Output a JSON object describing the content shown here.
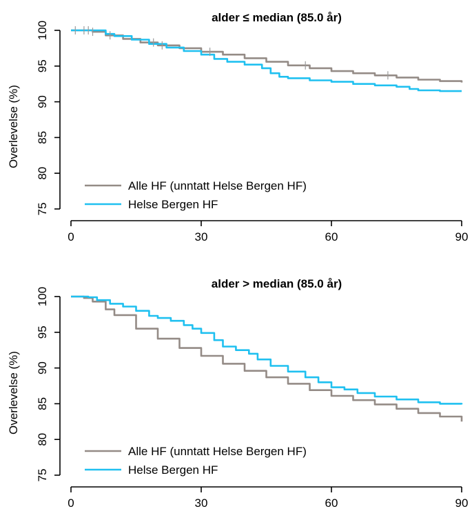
{
  "chart_data": [
    {
      "type": "line",
      "title": "alder ≤ median (85.0 år)",
      "xlabel": "",
      "ylabel": "Overlevelse (%)",
      "xlim": [
        0,
        90
      ],
      "ylim": [
        75,
        100
      ],
      "xticks": [
        0,
        30,
        60,
        90
      ],
      "yticks": [
        75,
        80,
        85,
        90,
        95,
        100
      ],
      "legend_position": "bottom-left",
      "series": [
        {
          "name": "Alle HF (unntatt Helse Bergen HF)",
          "color": "#948b86",
          "x": [
            0,
            5,
            8,
            12,
            16,
            20,
            25,
            30,
            35,
            40,
            45,
            50,
            55,
            60,
            65,
            70,
            75,
            80,
            85,
            90
          ],
          "y": [
            100,
            99.8,
            99.3,
            98.8,
            98.3,
            97.9,
            97.5,
            97.0,
            96.6,
            96.1,
            95.6,
            95.1,
            94.7,
            94.3,
            94.0,
            93.7,
            93.4,
            93.1,
            92.9,
            92.7
          ]
        },
        {
          "name": "Helse Bergen HF",
          "color": "#1fc0f0",
          "x": [
            0,
            5,
            8,
            10,
            14,
            18,
            22,
            26,
            30,
            33,
            36,
            40,
            44,
            46,
            48,
            50,
            55,
            60,
            65,
            70,
            75,
            78,
            80,
            85,
            90
          ],
          "y": [
            100,
            100,
            99.5,
            99.2,
            98.7,
            98.1,
            97.6,
            97.1,
            96.6,
            96.0,
            95.6,
            95.2,
            94.7,
            94.0,
            93.5,
            93.3,
            93.0,
            92.8,
            92.5,
            92.3,
            92.1,
            91.8,
            91.6,
            91.5,
            91.5
          ]
        }
      ],
      "censor_marks": {
        "series": "Alle HF (unntatt Helse Bergen HF)",
        "x": [
          1,
          3,
          4,
          5,
          9,
          19,
          21,
          32,
          54,
          73
        ]
      }
    },
    {
      "type": "line",
      "title": "alder > median (85.0 år)",
      "xlabel": "",
      "ylabel": "Overlevelse (%)",
      "xlim": [
        0,
        90
      ],
      "ylim": [
        75,
        100
      ],
      "xticks": [
        0,
        30,
        60,
        90
      ],
      "yticks": [
        75,
        80,
        85,
        90,
        95,
        100
      ],
      "legend_position": "bottom-left",
      "series": [
        {
          "name": "Alle HF (unntatt Helse Bergen HF)",
          "color": "#948b86",
          "x": [
            0,
            3,
            5,
            8,
            10,
            15,
            20,
            25,
            30,
            35,
            40,
            45,
            50,
            55,
            60,
            65,
            70,
            75,
            80,
            85,
            90
          ],
          "y": [
            100,
            99.8,
            99.3,
            98.2,
            97.4,
            95.5,
            94.1,
            92.8,
            91.7,
            90.6,
            89.6,
            88.7,
            87.8,
            86.9,
            86.1,
            85.5,
            84.9,
            84.3,
            83.7,
            83.2,
            82.5
          ]
        },
        {
          "name": "Helse Bergen HF",
          "color": "#1fc0f0",
          "x": [
            0,
            4,
            6,
            9,
            12,
            15,
            18,
            20,
            23,
            26,
            28,
            30,
            33,
            35,
            38,
            41,
            43,
            46,
            50,
            54,
            57,
            60,
            63,
            66,
            70,
            75,
            80,
            85,
            90
          ],
          "y": [
            100,
            99.9,
            99.5,
            99.0,
            98.6,
            98.0,
            97.3,
            97.0,
            96.6,
            96.0,
            95.5,
            94.9,
            93.9,
            93.0,
            92.5,
            92.0,
            91.2,
            90.3,
            89.5,
            88.7,
            88.0,
            87.3,
            87.0,
            86.5,
            86.0,
            85.6,
            85.2,
            85.0,
            84.9
          ]
        }
      ]
    }
  ]
}
